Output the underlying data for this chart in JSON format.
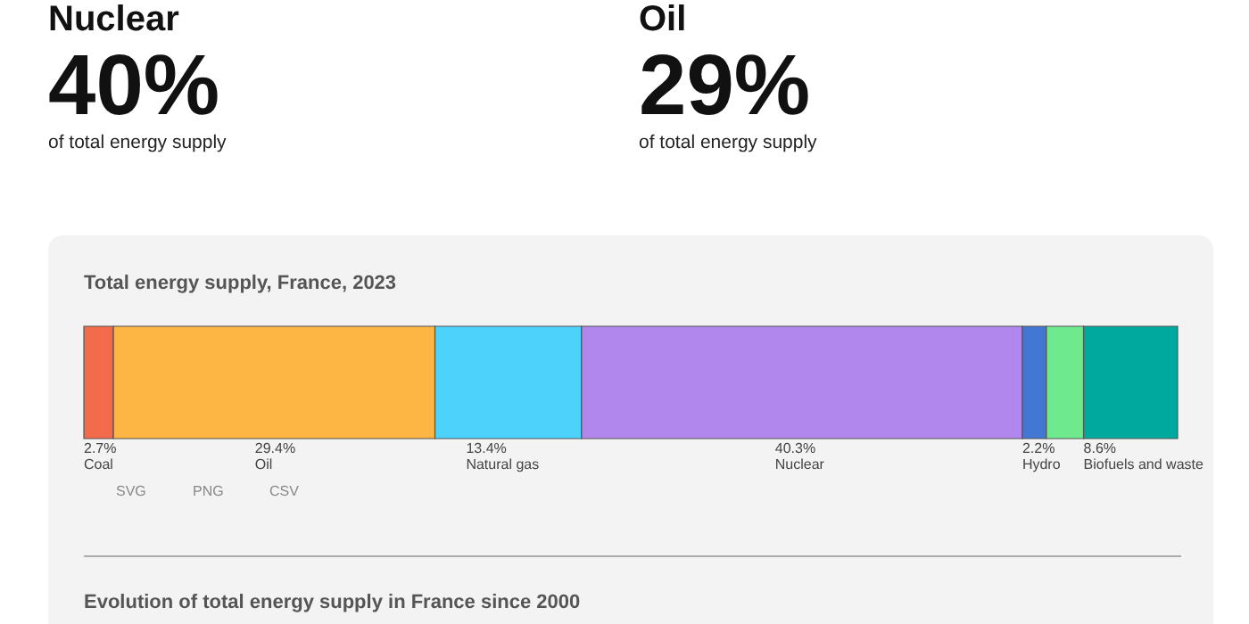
{
  "chart_data": {
    "type": "bar",
    "orientation": "horizontal",
    "stacked": true,
    "title": "Total energy supply, France, 2023",
    "categories": [
      null
    ],
    "series": [
      {
        "name": "Coal",
        "color": "#f26b4a",
        "values": [
          2.7
        ],
        "value_labels": [
          "2.7%"
        ]
      },
      {
        "name": "Oil",
        "color": "#fdb544",
        "values": [
          29.4
        ],
        "value_labels": [
          "29.4%"
        ]
      },
      {
        "name": "Natural gas",
        "color": "#4dd2fc",
        "values": [
          13.4
        ],
        "value_labels": [
          "13.4%"
        ]
      },
      {
        "name": "Nuclear",
        "color": "#b187ee",
        "values": [
          40.3
        ],
        "value_labels": [
          "40.3%"
        ]
      },
      {
        "name": "Hydro",
        "color": "#4278d4",
        "values": [
          2.2
        ],
        "value_labels": [
          "2.2%"
        ]
      },
      {
        "color": "#6ee98e",
        "values": [
          3.4
        ]
      },
      {
        "name": "Biofuels and waste",
        "color": "#00a99d",
        "values": [
          8.6
        ],
        "value_labels": [
          "8.6%"
        ]
      }
    ],
    "annotations": [
      "Nuclear",
      "40%",
      "of total energy supply",
      "Oil",
      "29%",
      "of total energy supply",
      "SVG",
      "PNG",
      "CSV",
      "Evolution of total energy supply in France since 2000"
    ]
  }
}
